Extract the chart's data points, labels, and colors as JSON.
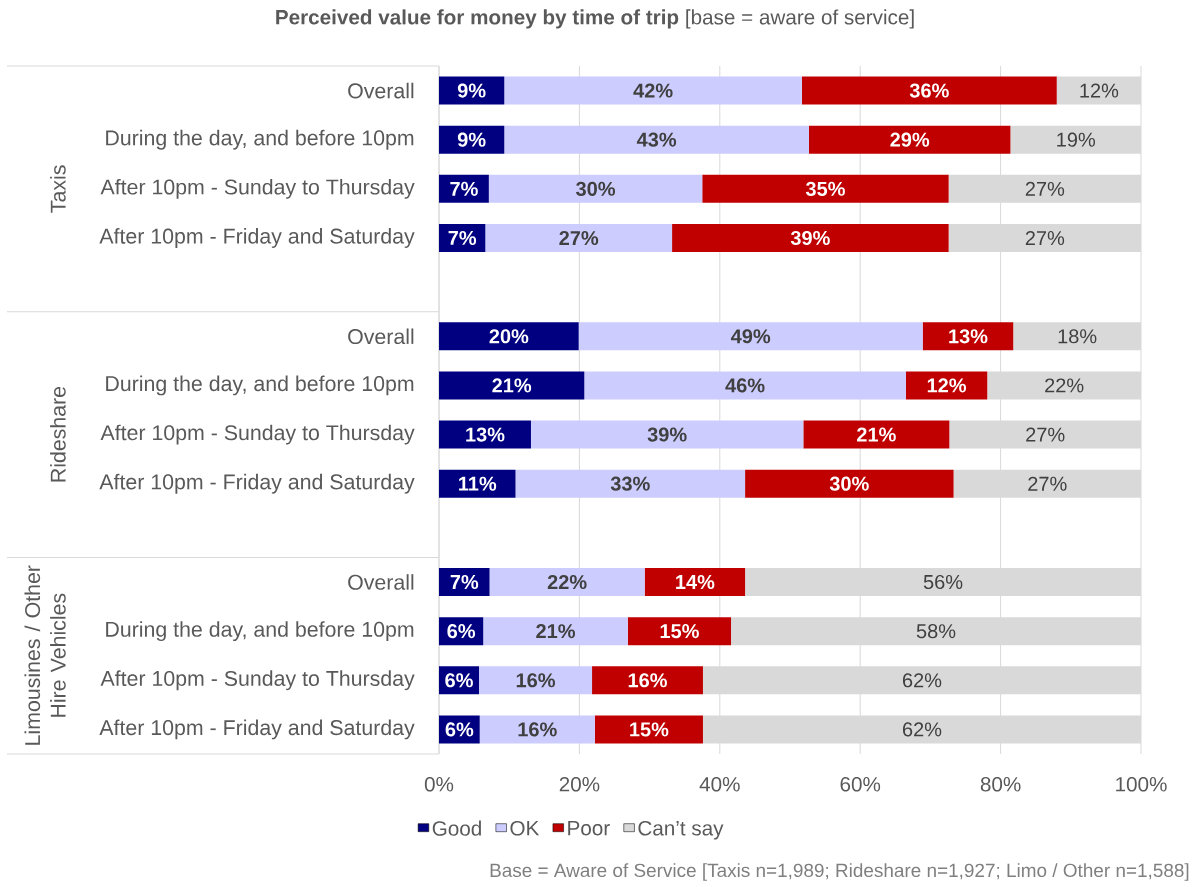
{
  "chart_data": {
    "type": "bar",
    "orientation": "horizontal",
    "stacked": true,
    "title": "**Perceived value for money by time of trip** [base = aware of service]",
    "categories": [
      "Overall",
      "During the day, and before 10pm",
      "After 10pm - Sunday to Thursday",
      "After 10pm - Friday and Saturday",
      null,
      "Overall",
      "During the day, and before 10pm",
      "After 10pm - Sunday to Thursday",
      "After 10pm - Friday and Saturday",
      null,
      "Overall",
      "During the day, and before 10pm",
      "After 10pm - Sunday to Thursday",
      "After 10pm - Friday and Saturday"
    ],
    "series": [
      {
        "name": "Good",
        "color": "#000080",
        "values": [
          9.3,
          9.3,
          7.1,
          6.6,
          null,
          19.9,
          20.7,
          13.1,
          10.9,
          null,
          7.2,
          6.3,
          5.7,
          5.8
        ],
        "value_labels": [
          "9%",
          "9%",
          "7%",
          "7%",
          null,
          "20%",
          "21%",
          "13%",
          "11%",
          null,
          "7%",
          "6%",
          "6%",
          "6%"
        ]
      },
      {
        "name": "OK",
        "color": "#ccccff",
        "values": [
          42.4,
          43.4,
          30.4,
          26.6,
          null,
          49.0,
          45.8,
          38.8,
          32.7,
          null,
          22.1,
          20.6,
          16.1,
          16.4
        ],
        "value_labels": [
          "42%",
          "43%",
          "30%",
          "27%",
          null,
          "49%",
          "46%",
          "39%",
          "33%",
          null,
          "22%",
          "21%",
          "16%",
          "16%"
        ]
      },
      {
        "name": "Poor",
        "color": "#c00000",
        "values": [
          36.3,
          28.7,
          35.1,
          39.4,
          null,
          12.9,
          11.6,
          20.8,
          29.7,
          null,
          14.3,
          14.7,
          15.8,
          15.4
        ],
        "value_labels": [
          "36%",
          "29%",
          "35%",
          "39%",
          null,
          "13%",
          "12%",
          "21%",
          "30%",
          null,
          "14%",
          "15%",
          "16%",
          "15%"
        ]
      },
      {
        "name": "Can’t say",
        "color": "#d9d9d9",
        "values": [
          12.0,
          18.6,
          27.4,
          27.4,
          null,
          18.2,
          21.9,
          27.3,
          26.7,
          null,
          56.4,
          58.4,
          62.4,
          62.4
        ],
        "value_labels": [
          "12%",
          "19%",
          "27%",
          "27%",
          null,
          "18%",
          "22%",
          "27%",
          "27%",
          null,
          "56%",
          "58%",
          "62%",
          "62%"
        ]
      }
    ],
    "xlim": [
      0,
      100
    ],
    "xticks": [
      {
        "value": 0,
        "label": "0%"
      },
      {
        "value": 20,
        "label": "20%"
      },
      {
        "value": 40,
        "label": "40%"
      },
      {
        "value": 60,
        "label": "60%"
      },
      {
        "value": 80,
        "label": "80%"
      },
      {
        "value": 100,
        "label": "100%"
      }
    ],
    "grid": "x",
    "legend": "bottom",
    "annotations": [
      "Taxis",
      "Rideshare",
      "Limousines / Other Hire Vehicles",
      "Base = Aware of Service [Taxis n=1,989; Rideshare n=1,927; Limo / Other n=1,588]"
    ]
  }
}
